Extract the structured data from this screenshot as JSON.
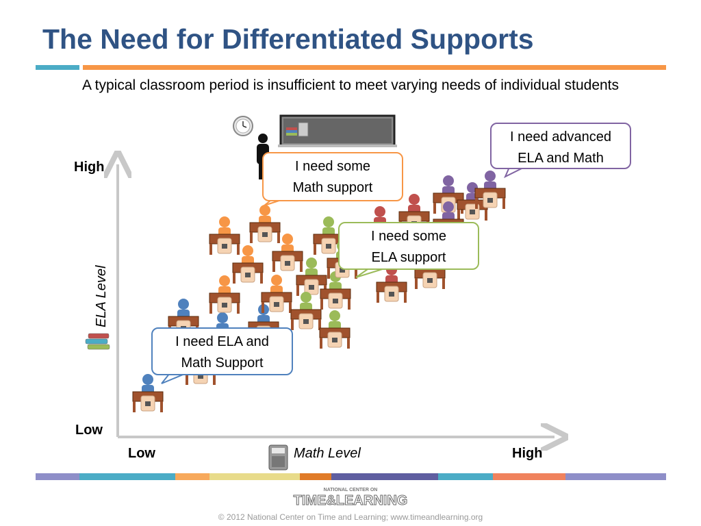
{
  "title": "The Need for Differentiated Supports",
  "subtitle": "A typical classroom period is insufficient to meet varying needs of individual students",
  "axes": {
    "y_high": "High",
    "y_low": "Low",
    "y_title": "ELA Level",
    "x_low": "Low",
    "x_high": "High",
    "x_title": "Math Level"
  },
  "bubbles": {
    "math_support": [
      "I need some",
      "Math support"
    ],
    "advanced": [
      "I need advanced",
      "ELA and Math"
    ],
    "ela_support": [
      "I need some",
      "ELA support"
    ],
    "both_support": [
      "I need ELA and",
      "Math Support"
    ]
  },
  "colors": {
    "title": "#2f5384",
    "blue": "#4f81bd",
    "orange": "#f79646",
    "green": "#9bbb59",
    "purple": "#8064a2",
    "red": "#c0504d",
    "desk": "#a0522d",
    "bottom_bar": [
      "#8e8ec8",
      "#4bacc6",
      "#f7a95c",
      "#e8db8a",
      "#e07b28",
      "#5f5ea0",
      "#4bacc6",
      "#f0825d",
      "#8e8ec8"
    ]
  },
  "icons": [
    "clock-icon",
    "teacher-icon",
    "chalkboard-icon",
    "books-icon",
    "calculator-icon"
  ],
  "logo_text": "TIME & LEARNING",
  "copyright": "© 2012 National Center on Time and Learning; www.timeandlearning.org"
}
